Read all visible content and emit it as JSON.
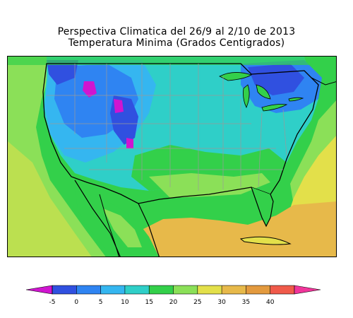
{
  "title": "Perspectiva Climatica del 26/9 al 2/10 de 2013",
  "subtitle": "Temperatura Minima (Grados Centigrados)",
  "colorbar": {
    "ticks": [
      "-5",
      "0",
      "5",
      "10",
      "15",
      "20",
      "25",
      "30",
      "35",
      "40"
    ],
    "colors": [
      "#3050e0",
      "#2f84f2",
      "#35b6f0",
      "#2fcfc8",
      "#33d04a",
      "#8be058",
      "#e3e04a",
      "#e7b94a",
      "#e39a3e",
      "#f05a4a"
    ],
    "low_color": "#d015d0",
    "high_color": "#f0359a"
  },
  "map": {
    "background_color": "#2fb8c8",
    "ocean_pacific_color": "#8be058",
    "gulf_color": "#e7b94a",
    "atlantic_color": "#e3e04a",
    "canada_color": "#33d04a"
  }
}
